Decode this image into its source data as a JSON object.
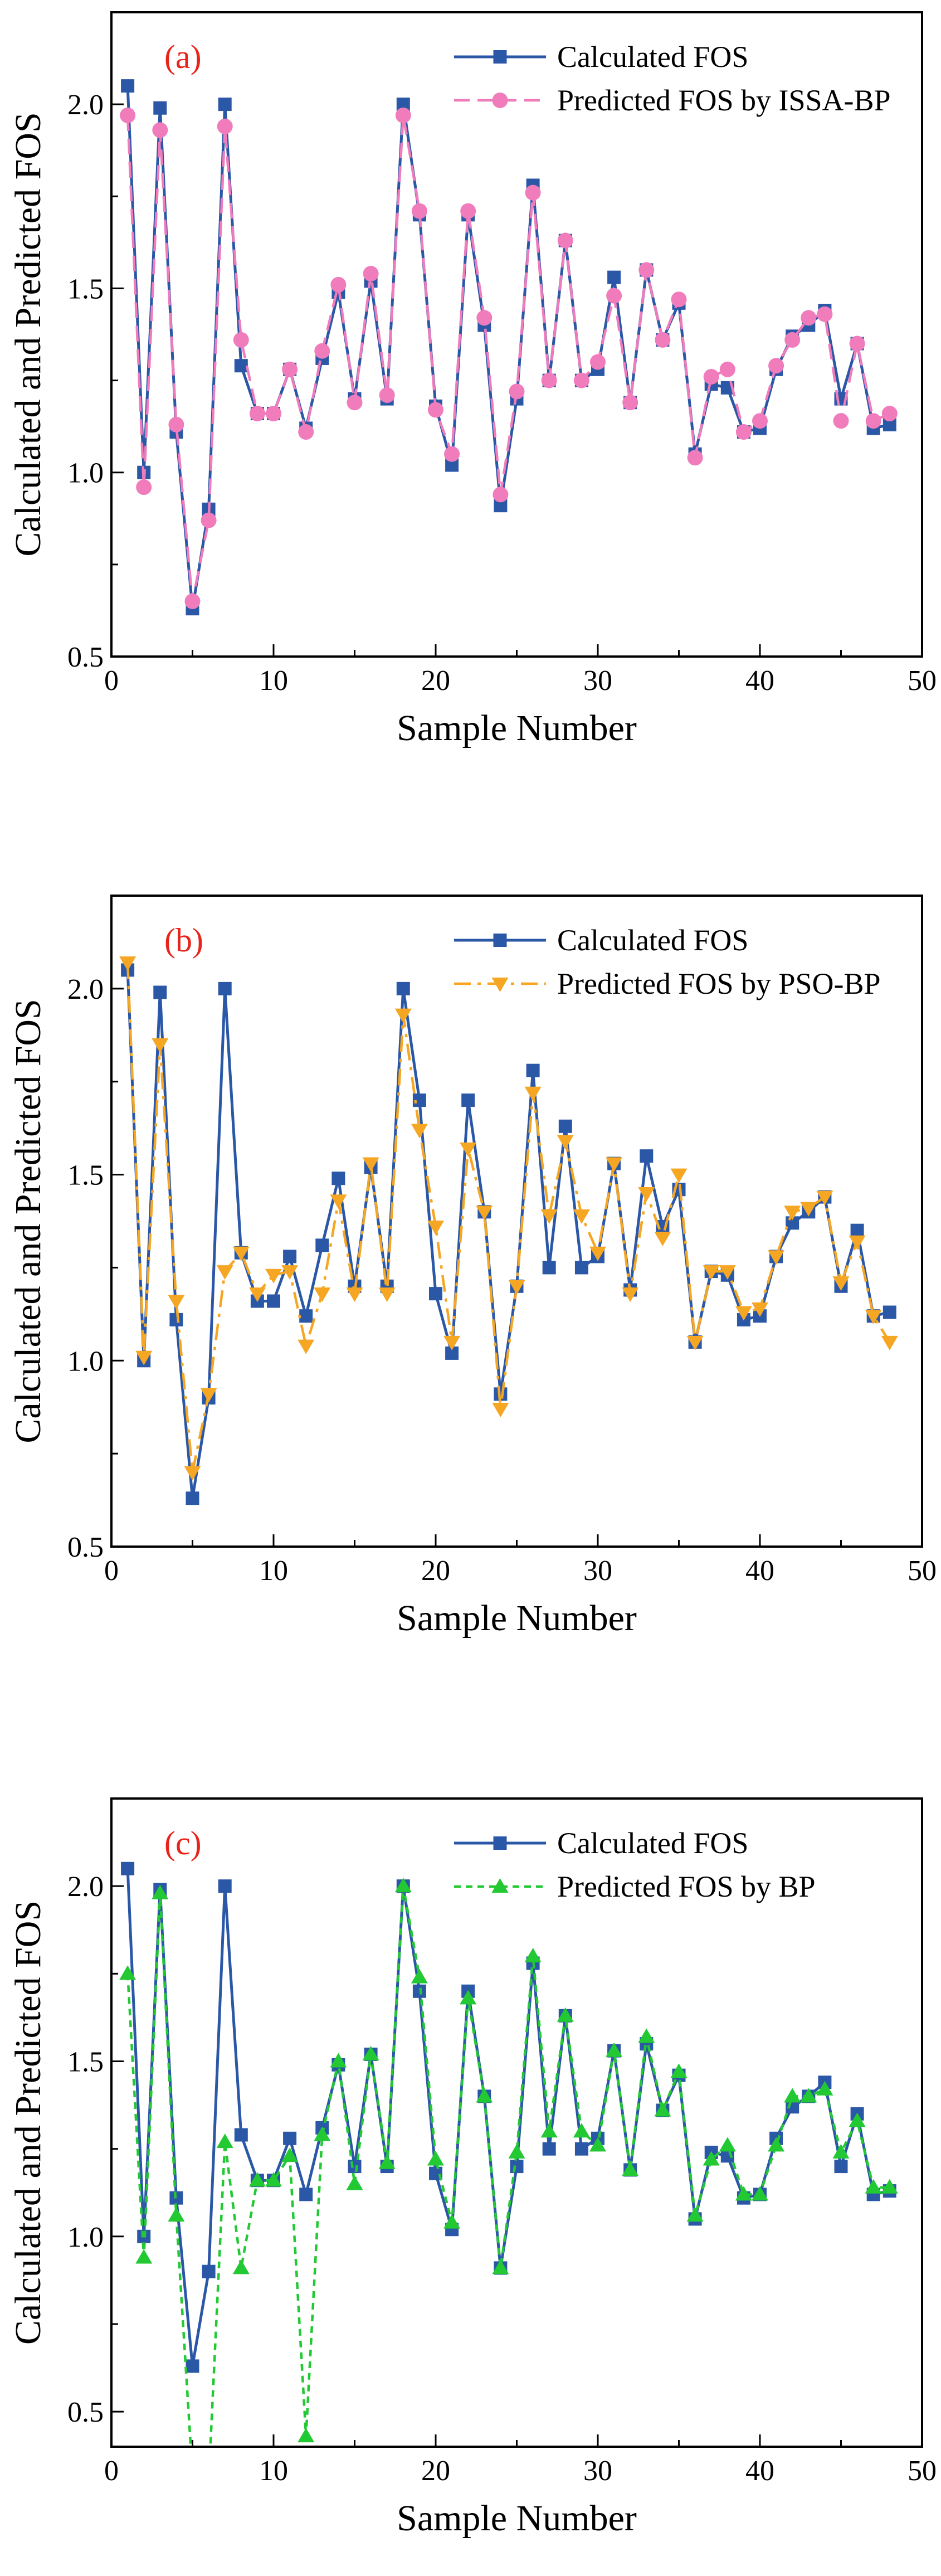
{
  "figure": {
    "panels": [
      "panel-a",
      "panel-b",
      "panel-c"
    ]
  },
  "chart_data": [
    {
      "id": "a",
      "type": "line",
      "panel_label": "(a)",
      "xlabel": "Sample Number",
      "ylabel": "Calculated and Predicted FOS",
      "xlim": [
        0,
        50
      ],
      "ylim": [
        0.5,
        2.25
      ],
      "xticks": [
        0,
        10,
        20,
        30,
        40,
        50
      ],
      "yticks": [
        0.5,
        1.0,
        1.5,
        2.0
      ],
      "legend_position": "top-right",
      "x": [
        1,
        2,
        3,
        4,
        5,
        6,
        7,
        8,
        9,
        10,
        11,
        12,
        13,
        14,
        15,
        16,
        17,
        18,
        19,
        20,
        21,
        22,
        23,
        24,
        25,
        26,
        27,
        28,
        29,
        30,
        31,
        32,
        33,
        34,
        35,
        36,
        37,
        38,
        39,
        40,
        41,
        42,
        43,
        44,
        45,
        46,
        47,
        48
      ],
      "series": [
        {
          "name": "Calculated FOS",
          "color": "#2b57a7",
          "marker": "square",
          "line_style": "solid",
          "values": [
            2.05,
            1.0,
            1.99,
            1.11,
            0.63,
            0.9,
            2.0,
            1.29,
            1.16,
            1.16,
            1.28,
            1.12,
            1.31,
            1.49,
            1.2,
            1.52,
            1.2,
            2.0,
            1.7,
            1.18,
            1.02,
            1.7,
            1.4,
            0.91,
            1.2,
            1.78,
            1.25,
            1.63,
            1.25,
            1.28,
            1.53,
            1.19,
            1.55,
            1.36,
            1.46,
            1.05,
            1.24,
            1.23,
            1.11,
            1.12,
            1.28,
            1.37,
            1.4,
            1.44,
            1.2,
            1.35,
            1.12,
            1.13
          ]
        },
        {
          "name": "Predicted FOS by ISSA-BP",
          "color": "#f07cbc",
          "marker": "circle",
          "line_style": "dashed",
          "values": [
            1.97,
            0.96,
            1.93,
            1.13,
            0.65,
            0.87,
            1.94,
            1.36,
            1.16,
            1.16,
            1.28,
            1.11,
            1.33,
            1.51,
            1.19,
            1.54,
            1.21,
            1.97,
            1.71,
            1.17,
            1.05,
            1.71,
            1.42,
            0.94,
            1.22,
            1.76,
            1.25,
            1.63,
            1.25,
            1.3,
            1.48,
            1.19,
            1.55,
            1.36,
            1.47,
            1.04,
            1.26,
            1.28,
            1.11,
            1.14,
            1.29,
            1.36,
            1.42,
            1.43,
            1.14,
            1.35,
            1.14,
            1.16
          ]
        }
      ]
    },
    {
      "id": "b",
      "type": "line",
      "panel_label": "(b)",
      "xlabel": "Sample Number",
      "ylabel": "Calculated and Predicted FOS",
      "xlim": [
        0,
        50
      ],
      "ylim": [
        0.5,
        2.25
      ],
      "xticks": [
        0,
        10,
        20,
        30,
        40,
        50
      ],
      "yticks": [
        0.5,
        1.0,
        1.5,
        2.0
      ],
      "legend_position": "top-right",
      "x": [
        1,
        2,
        3,
        4,
        5,
        6,
        7,
        8,
        9,
        10,
        11,
        12,
        13,
        14,
        15,
        16,
        17,
        18,
        19,
        20,
        21,
        22,
        23,
        24,
        25,
        26,
        27,
        28,
        29,
        30,
        31,
        32,
        33,
        34,
        35,
        36,
        37,
        38,
        39,
        40,
        41,
        42,
        43,
        44,
        45,
        46,
        47,
        48
      ],
      "series": [
        {
          "name": "Calculated FOS",
          "color": "#2b57a7",
          "marker": "square",
          "line_style": "solid",
          "values": [
            2.05,
            1.0,
            1.99,
            1.11,
            0.63,
            0.9,
            2.0,
            1.29,
            1.16,
            1.16,
            1.28,
            1.12,
            1.31,
            1.49,
            1.2,
            1.52,
            1.2,
            2.0,
            1.7,
            1.18,
            1.02,
            1.7,
            1.4,
            0.91,
            1.2,
            1.78,
            1.25,
            1.63,
            1.25,
            1.28,
            1.53,
            1.19,
            1.55,
            1.36,
            1.46,
            1.05,
            1.24,
            1.23,
            1.11,
            1.12,
            1.28,
            1.37,
            1.4,
            1.44,
            1.2,
            1.35,
            1.12,
            1.13
          ]
        },
        {
          "name": "Predicted FOS by PSO-BP",
          "color": "#f5a623",
          "marker": "triangle-down",
          "line_style": "dash-dot",
          "values": [
            2.07,
            1.01,
            1.85,
            1.16,
            0.7,
            0.91,
            1.24,
            1.29,
            1.18,
            1.23,
            1.24,
            1.04,
            1.18,
            1.43,
            1.18,
            1.53,
            1.18,
            1.93,
            1.62,
            1.36,
            1.05,
            1.57,
            1.4,
            0.87,
            1.2,
            1.72,
            1.39,
            1.59,
            1.39,
            1.29,
            1.53,
            1.18,
            1.45,
            1.33,
            1.5,
            1.05,
            1.24,
            1.24,
            1.13,
            1.14,
            1.28,
            1.4,
            1.41,
            1.44,
            1.21,
            1.32,
            1.12,
            1.05
          ]
        }
      ]
    },
    {
      "id": "c",
      "type": "line",
      "panel_label": "(c)",
      "xlabel": "Sample Number",
      "ylabel": "Calculated and Predicted FOS",
      "xlim": [
        0,
        50
      ],
      "ylim": [
        0.4,
        2.25
      ],
      "xticks": [
        0,
        10,
        20,
        30,
        40,
        50
      ],
      "yticks": [
        0.5,
        1.0,
        1.5,
        2.0
      ],
      "legend_position": "top-right",
      "x": [
        1,
        2,
        3,
        4,
        5,
        6,
        7,
        8,
        9,
        10,
        11,
        12,
        13,
        14,
        15,
        16,
        17,
        18,
        19,
        20,
        21,
        22,
        23,
        24,
        25,
        26,
        27,
        28,
        29,
        30,
        31,
        32,
        33,
        34,
        35,
        36,
        37,
        38,
        39,
        40,
        41,
        42,
        43,
        44,
        45,
        46,
        47,
        48
      ],
      "series": [
        {
          "name": "Calculated FOS",
          "color": "#2b57a7",
          "marker": "square",
          "line_style": "solid",
          "values": [
            2.05,
            1.0,
            1.99,
            1.11,
            0.63,
            0.9,
            2.0,
            1.29,
            1.16,
            1.16,
            1.28,
            1.12,
            1.31,
            1.49,
            1.2,
            1.52,
            1.2,
            2.0,
            1.7,
            1.18,
            1.02,
            1.7,
            1.4,
            0.91,
            1.2,
            1.78,
            1.25,
            1.63,
            1.25,
            1.28,
            1.53,
            1.19,
            1.55,
            1.36,
            1.46,
            1.05,
            1.24,
            1.23,
            1.11,
            1.12,
            1.28,
            1.37,
            1.4,
            1.44,
            1.2,
            1.35,
            1.12,
            1.13
          ]
        },
        {
          "name": "Predicted FOS by BP",
          "color": "#22c932",
          "marker": "triangle-up",
          "line_style": "dotted",
          "values": [
            1.75,
            0.94,
            1.98,
            1.06,
            0.32,
            0.3,
            1.27,
            0.91,
            1.16,
            1.16,
            1.23,
            0.43,
            1.29,
            1.5,
            1.15,
            1.52,
            1.21,
            2.0,
            1.74,
            1.22,
            1.04,
            1.68,
            1.4,
            0.91,
            1.24,
            1.8,
            1.3,
            1.63,
            1.3,
            1.26,
            1.53,
            1.19,
            1.57,
            1.36,
            1.47,
            1.06,
            1.22,
            1.26,
            1.12,
            1.12,
            1.26,
            1.4,
            1.4,
            1.42,
            1.24,
            1.33,
            1.14,
            1.14
          ]
        }
      ]
    }
  ]
}
